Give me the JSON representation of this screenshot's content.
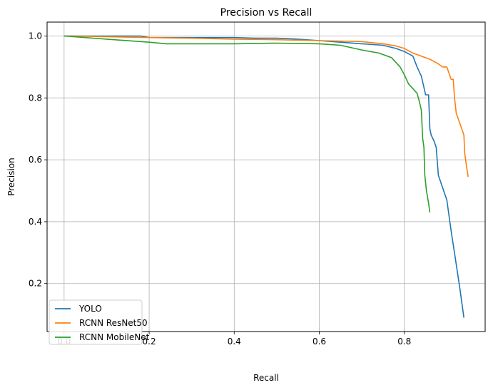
{
  "chart_data": {
    "type": "line",
    "title": "Precision vs Recall",
    "xlabel": "Recall",
    "ylabel": "Precision",
    "xlim": [
      -0.04,
      0.99
    ],
    "ylim": [
      0.045,
      1.045
    ],
    "xticks": [
      0.0,
      0.2,
      0.4,
      0.6,
      0.8
    ],
    "xtick_labels": [
      "0.0",
      "0.2",
      "0.4",
      "0.6",
      "0.8"
    ],
    "yticks": [
      0.2,
      0.4,
      0.6,
      0.8,
      1.0
    ],
    "ytick_labels": [
      "0.2",
      "0.4",
      "0.6",
      "0.8",
      "1.0"
    ],
    "grid": true,
    "legend_position": "lower-left",
    "series": [
      {
        "name": "YOLO",
        "color": "#1f77b4",
        "points": [
          [
            0.0,
            1.0
          ],
          [
            0.18,
            1.0
          ],
          [
            0.2,
            0.995
          ],
          [
            0.3,
            0.995
          ],
          [
            0.4,
            0.995
          ],
          [
            0.45,
            0.993
          ],
          [
            0.5,
            0.993
          ],
          [
            0.55,
            0.99
          ],
          [
            0.6,
            0.985
          ],
          [
            0.65,
            0.98
          ],
          [
            0.7,
            0.975
          ],
          [
            0.75,
            0.97
          ],
          [
            0.78,
            0.96
          ],
          [
            0.8,
            0.95
          ],
          [
            0.82,
            0.935
          ],
          [
            0.83,
            0.9
          ],
          [
            0.84,
            0.87
          ],
          [
            0.845,
            0.84
          ],
          [
            0.85,
            0.81
          ],
          [
            0.857,
            0.81
          ],
          [
            0.86,
            0.7
          ],
          [
            0.863,
            0.68
          ],
          [
            0.87,
            0.66
          ],
          [
            0.875,
            0.64
          ],
          [
            0.88,
            0.55
          ],
          [
            0.89,
            0.51
          ],
          [
            0.9,
            0.47
          ],
          [
            0.91,
            0.37
          ],
          [
            0.92,
            0.28
          ],
          [
            0.93,
            0.19
          ],
          [
            0.94,
            0.09
          ]
        ]
      },
      {
        "name": "RCNN ResNet50",
        "color": "#ff7f0e",
        "points": [
          [
            0.0,
            1.0
          ],
          [
            0.1,
            0.998
          ],
          [
            0.2,
            0.995
          ],
          [
            0.3,
            0.993
          ],
          [
            0.4,
            0.99
          ],
          [
            0.5,
            0.988
          ],
          [
            0.6,
            0.985
          ],
          [
            0.7,
            0.982
          ],
          [
            0.75,
            0.975
          ],
          [
            0.78,
            0.968
          ],
          [
            0.8,
            0.96
          ],
          [
            0.82,
            0.945
          ],
          [
            0.84,
            0.935
          ],
          [
            0.86,
            0.925
          ],
          [
            0.88,
            0.91
          ],
          [
            0.89,
            0.9
          ],
          [
            0.9,
            0.9
          ],
          [
            0.905,
            0.88
          ],
          [
            0.91,
            0.86
          ],
          [
            0.915,
            0.86
          ],
          [
            0.918,
            0.8
          ],
          [
            0.922,
            0.75
          ],
          [
            0.93,
            0.72
          ],
          [
            0.935,
            0.7
          ],
          [
            0.94,
            0.68
          ],
          [
            0.942,
            0.62
          ],
          [
            0.946,
            0.58
          ],
          [
            0.95,
            0.545
          ]
        ]
      },
      {
        "name": "RCNN MobileNet",
        "color": "#2ca02c",
        "points": [
          [
            0.0,
            1.0
          ],
          [
            0.1,
            0.99
          ],
          [
            0.2,
            0.98
          ],
          [
            0.24,
            0.975
          ],
          [
            0.3,
            0.975
          ],
          [
            0.4,
            0.975
          ],
          [
            0.5,
            0.977
          ],
          [
            0.6,
            0.975
          ],
          [
            0.65,
            0.97
          ],
          [
            0.7,
            0.955
          ],
          [
            0.74,
            0.945
          ],
          [
            0.77,
            0.93
          ],
          [
            0.79,
            0.9
          ],
          [
            0.8,
            0.875
          ],
          [
            0.81,
            0.845
          ],
          [
            0.82,
            0.83
          ],
          [
            0.83,
            0.815
          ],
          [
            0.835,
            0.79
          ],
          [
            0.84,
            0.76
          ],
          [
            0.843,
            0.67
          ],
          [
            0.846,
            0.64
          ],
          [
            0.848,
            0.55
          ],
          [
            0.852,
            0.5
          ],
          [
            0.857,
            0.46
          ],
          [
            0.86,
            0.43
          ]
        ]
      }
    ]
  }
}
